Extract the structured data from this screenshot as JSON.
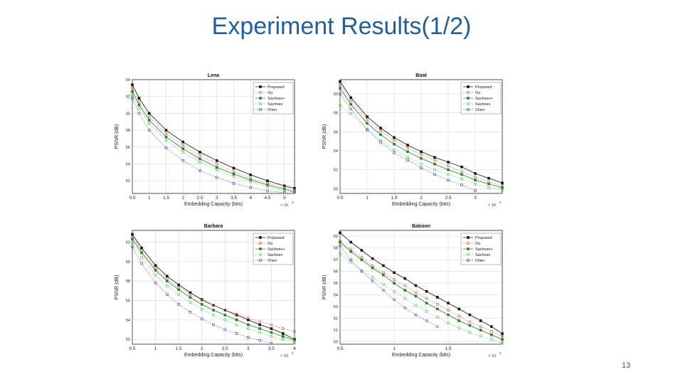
{
  "slide": {
    "title": "Experiment Results(1/2)",
    "page_number": "13"
  },
  "colors": {
    "Proposed": "#111111",
    "Ou": "#e05555",
    "Sachnev+": "#1a8a1a",
    "Sachnev": "#55cc55",
    "Chen": "#4444cc"
  },
  "chart_data": [
    {
      "type": "line",
      "title": "Lena",
      "xlabel": "Embedding Capacity (bits)",
      "ylabel": "PSNR (dB)",
      "x_exponent": "× 10",
      "x_exponent_power": "4",
      "xlim": [
        0.5,
        5.3
      ],
      "ylim": [
        50.5,
        64
      ],
      "xticks": [
        0.5,
        1,
        1.5,
        2,
        2.5,
        3,
        3.5,
        4,
        4.5,
        5
      ],
      "yticks": [
        52,
        54,
        56,
        58,
        60,
        62,
        64
      ],
      "grid": true,
      "legend_position": "top-right",
      "series": [
        {
          "name": "Proposed",
          "x": [
            0.5,
            0.7,
            1.0,
            1.5,
            2.0,
            2.5,
            3.0,
            3.5,
            4.0,
            4.5,
            5.0,
            5.3
          ],
          "y": [
            63.4,
            61.8,
            60.0,
            58.0,
            56.6,
            55.4,
            54.4,
            53.5,
            52.7,
            52.0,
            51.4,
            51.1
          ]
        },
        {
          "name": "Ou",
          "x": [
            0.5,
            0.7,
            1.0,
            1.5,
            2.0,
            2.5,
            3.0,
            3.5,
            4.0,
            4.5,
            5.0,
            5.3
          ],
          "y": [
            63.0,
            61.4,
            59.6,
            57.6,
            56.2,
            55.0,
            54.0,
            53.1,
            52.3,
            51.7,
            51.2,
            50.9
          ]
        },
        {
          "name": "Sachnev+",
          "x": [
            0.5,
            0.7,
            1.0,
            1.5,
            2.0,
            2.5,
            3.0,
            3.5,
            4.0,
            4.5,
            5.0,
            5.3
          ],
          "y": [
            62.6,
            61.0,
            59.2,
            57.2,
            55.8,
            54.6,
            53.6,
            52.8,
            52.1,
            51.5,
            51.0,
            50.7
          ]
        },
        {
          "name": "Sachnev",
          "x": [
            0.5,
            0.7,
            1.0,
            1.5,
            2.0,
            2.5,
            3.0,
            3.5,
            4.0,
            4.5,
            5.0,
            5.3
          ],
          "y": [
            62.2,
            60.6,
            58.8,
            56.8,
            55.4,
            54.2,
            53.3,
            52.5,
            51.9,
            51.3,
            50.8,
            50.6
          ]
        },
        {
          "name": "Chen",
          "x": [
            0.5,
            0.7,
            1.0,
            1.5,
            2.0,
            2.5,
            3.0,
            3.5,
            4.0,
            4.5,
            5.0
          ],
          "y": [
            61.8,
            60.0,
            58.0,
            55.9,
            54.4,
            53.2,
            52.4,
            51.7,
            51.2,
            50.8,
            50.6
          ]
        }
      ]
    },
    {
      "type": "line",
      "title": "Boat",
      "xlabel": "Embedding Capacity (bits)",
      "ylabel": "PSNR (dB)",
      "x_exponent": "× 10",
      "x_exponent_power": "4",
      "xlim": [
        0.5,
        3.5
      ],
      "ylim": [
        49.5,
        61.5
      ],
      "xticks": [
        0.5,
        1,
        1.5,
        2,
        2.5,
        3
      ],
      "yticks": [
        50,
        52,
        54,
        56,
        58,
        60
      ],
      "grid": true,
      "legend_position": "top-right",
      "series": [
        {
          "name": "Proposed",
          "x": [
            0.5,
            0.7,
            1.0,
            1.25,
            1.5,
            1.75,
            2.0,
            2.25,
            2.5,
            2.75,
            3.0,
            3.25,
            3.5
          ],
          "y": [
            61.3,
            59.6,
            57.6,
            56.4,
            55.4,
            54.6,
            53.9,
            53.3,
            52.8,
            52.3,
            51.6,
            51.1,
            50.6
          ]
        },
        {
          "name": "Ou",
          "x": [
            0.5,
            0.7,
            1.0,
            1.25,
            1.5,
            1.75,
            2.0,
            2.25,
            2.5,
            2.75,
            3.0,
            3.25,
            3.5
          ],
          "y": [
            61.0,
            59.3,
            57.3,
            56.1,
            55.1,
            54.3,
            53.6,
            53.0,
            52.4,
            51.8,
            51.2,
            50.7,
            50.3
          ]
        },
        {
          "name": "Sachnev+",
          "x": [
            0.5,
            0.7,
            1.0,
            1.25,
            1.5,
            1.75,
            2.0,
            2.25,
            2.5,
            2.75,
            3.0,
            3.25,
            3.5
          ],
          "y": [
            60.6,
            58.9,
            56.9,
            55.7,
            54.7,
            53.9,
            53.2,
            52.6,
            52.0,
            51.5,
            50.9,
            50.5,
            50.1
          ]
        },
        {
          "name": "Sachnev",
          "x": [
            0.5,
            0.7,
            1.0,
            1.25,
            1.5,
            1.75,
            2.0,
            2.25,
            2.5,
            2.75,
            3.0,
            3.25,
            3.5
          ],
          "y": [
            58.8,
            57.9,
            56.3,
            55.1,
            54.1,
            53.3,
            52.6,
            52.0,
            51.5,
            51.0,
            50.5,
            50.1,
            49.8
          ]
        },
        {
          "name": "Chen",
          "x": [
            0.5,
            0.7,
            1.0,
            1.25,
            1.5,
            1.75,
            2.0,
            2.25,
            2.5,
            2.75,
            3.0
          ],
          "y": [
            60.0,
            58.4,
            56.2,
            54.9,
            53.8,
            53.0,
            52.2,
            51.5,
            50.9,
            50.4,
            49.8
          ]
        }
      ]
    },
    {
      "type": "line",
      "title": "Barbara",
      "xlabel": "Embedding Capacity (bits)",
      "ylabel": "PSNR (dB)",
      "x_exponent": "× 10",
      "x_exponent_power": "4",
      "xlim": [
        0.5,
        4
      ],
      "ylim": [
        51.5,
        63.2
      ],
      "xticks": [
        0.5,
        1,
        1.5,
        2,
        2.5,
        3,
        3.5,
        4
      ],
      "yticks": [
        52,
        54,
        56,
        58,
        60,
        62
      ],
      "grid": true,
      "legend_position": "top-right",
      "series": [
        {
          "name": "Proposed",
          "x": [
            0.5,
            0.7,
            1.0,
            1.25,
            1.5,
            1.75,
            2.0,
            2.25,
            2.5,
            2.75,
            3.0,
            3.25,
            3.5,
            3.75,
            4.0
          ],
          "y": [
            62.8,
            61.4,
            59.6,
            58.5,
            57.6,
            56.8,
            56.1,
            55.5,
            55.0,
            54.5,
            54.0,
            53.5,
            53.1,
            52.6,
            52.0
          ]
        },
        {
          "name": "Ou",
          "x": [
            0.5,
            0.7,
            1.0,
            1.25,
            1.5,
            1.75,
            2.0,
            2.25,
            2.5,
            2.75,
            3.0,
            3.25,
            3.5,
            3.75,
            4.0
          ],
          "y": [
            62.5,
            61.1,
            59.3,
            58.2,
            57.3,
            56.6,
            56.0,
            55.5,
            55.0,
            54.6,
            54.2,
            53.8,
            53.5,
            53.1,
            52.8
          ]
        },
        {
          "name": "Sachnev+",
          "x": [
            0.5,
            0.7,
            1.0,
            1.25,
            1.5,
            1.75,
            2.0,
            2.25,
            2.5,
            2.75,
            3.0,
            3.25,
            3.5,
            3.75,
            4.0
          ],
          "y": [
            62.3,
            60.9,
            59.1,
            58.0,
            57.1,
            56.3,
            55.6,
            55.0,
            54.5,
            54.0,
            53.5,
            53.1,
            52.7,
            52.3,
            51.9
          ]
        },
        {
          "name": "Sachnev",
          "x": [
            0.5,
            0.7,
            1.0,
            1.25,
            1.5,
            1.75,
            2.0,
            2.25,
            2.5,
            2.75,
            3.0,
            3.25,
            3.5,
            3.75,
            4.0
          ],
          "y": [
            61.9,
            60.4,
            58.6,
            57.5,
            56.6,
            55.8,
            55.1,
            54.5,
            54.0,
            53.5,
            53.1,
            52.7,
            52.3,
            52.0,
            51.7
          ]
        },
        {
          "name": "Chen",
          "x": [
            0.5,
            0.7,
            1.0,
            1.25,
            1.5,
            1.75,
            2.0,
            2.25,
            2.5,
            2.75,
            3.0,
            3.25,
            3.5
          ],
          "y": [
            61.5,
            59.8,
            57.8,
            56.6,
            55.6,
            54.8,
            54.1,
            53.5,
            53.0,
            52.6,
            52.2,
            51.9,
            51.6
          ]
        }
      ]
    },
    {
      "type": "line",
      "title": "Baboon",
      "xlabel": "Embedding Capacity (bits)",
      "ylabel": "PSNR (dB)",
      "x_exponent": "× 10",
      "x_exponent_power": "4",
      "xlim": [
        0.5,
        2
      ],
      "ylim": [
        49.8,
        59.5
      ],
      "xticks": [
        0.5,
        1,
        1.5
      ],
      "yticks": [
        50,
        51,
        52,
        53,
        54,
        55,
        56,
        57,
        58,
        59
      ],
      "grid": true,
      "legend_position": "top-right",
      "series": [
        {
          "name": "Proposed",
          "x": [
            0.5,
            0.6,
            0.7,
            0.8,
            0.9,
            1.0,
            1.1,
            1.2,
            1.3,
            1.4,
            1.5,
            1.6,
            1.7,
            1.8,
            1.9,
            2.0
          ],
          "y": [
            59.3,
            58.5,
            57.8,
            57.1,
            56.5,
            55.9,
            55.4,
            54.8,
            54.3,
            53.8,
            53.3,
            52.8,
            52.3,
            51.8,
            51.3,
            50.7
          ]
        },
        {
          "name": "Ou",
          "x": [
            0.5,
            0.6,
            0.7,
            0.8,
            0.9,
            1.0,
            1.1,
            1.2,
            1.3,
            1.4,
            1.5,
            1.6,
            1.7,
            1.8,
            1.9,
            2.0
          ],
          "y": [
            58.6,
            57.9,
            57.2,
            56.5,
            55.9,
            55.3,
            54.8,
            54.2,
            53.7,
            53.2,
            52.7,
            52.2,
            51.7,
            51.3,
            50.9,
            50.5
          ]
        },
        {
          "name": "Sachnev+",
          "x": [
            0.5,
            0.6,
            0.7,
            0.8,
            0.9,
            1.0,
            1.1,
            1.2,
            1.3,
            1.4,
            1.5,
            1.6,
            1.7,
            1.8,
            1.9,
            2.0
          ],
          "y": [
            58.5,
            57.7,
            57.0,
            56.3,
            55.7,
            55.0,
            54.4,
            53.9,
            53.3,
            52.8,
            52.3,
            51.8,
            51.4,
            51.0,
            50.6,
            50.2
          ]
        },
        {
          "name": "Sachnev",
          "x": [
            0.5,
            0.6,
            0.7,
            0.8,
            0.9,
            1.0,
            1.1,
            1.2,
            1.3,
            1.4,
            1.5,
            1.6,
            1.7,
            1.8,
            1.9,
            2.0
          ],
          "y": [
            57.5,
            56.8,
            56.1,
            55.5,
            54.9,
            54.3,
            53.7,
            53.1,
            52.6,
            52.1,
            51.6,
            51.2,
            50.8,
            50.5,
            50.2,
            49.9
          ]
        },
        {
          "name": "Chen",
          "x": [
            0.5,
            0.6,
            0.7,
            0.8,
            0.9,
            1.0,
            1.1,
            1.2,
            1.3,
            1.4
          ],
          "y": [
            58.2,
            57.0,
            56.0,
            55.2,
            54.4,
            53.6,
            52.9,
            52.3,
            51.8,
            51.3
          ]
        }
      ]
    }
  ]
}
